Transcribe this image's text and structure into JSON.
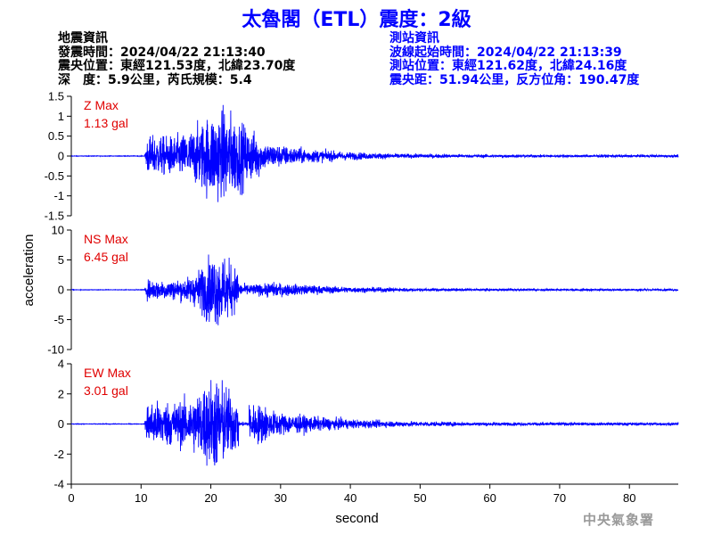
{
  "header": {
    "title": "太魯閣（ETL）震度：2級"
  },
  "quake_info": {
    "heading": "地震資訊",
    "origin_time": "發震時間：2024/04/22 21:13:40",
    "epicenter": "震央位置：東經121.53度，北緯23.70度",
    "depth_magnitude": "深　度：5.9公里，芮氏規模：5.4"
  },
  "station_info": {
    "heading": "測站資訊",
    "wave_start": "波線起始時間：2024/04/22 21:13:39",
    "location": "測站位置：東經121.62度，北緯24.16度",
    "distance": "震央距：51.94公里，反方位角：190.47度"
  },
  "watermark": "中央氣象署",
  "chart_data": {
    "type": "line",
    "xlabel": "second",
    "ylabel": "acceleration",
    "xlim": [
      0,
      87
    ],
    "xticks": [
      "0",
      "10",
      "20",
      "30",
      "40",
      "50",
      "60",
      "70",
      "80"
    ],
    "line_color": "#0000ff",
    "label_color": "#e00000",
    "grid": false,
    "onset_s": 10.5,
    "panels": [
      {
        "component": "Z",
        "max_label": "Z Max",
        "max_value": "1.13 gal",
        "peak": 1.13,
        "ylim": [
          -1.5,
          1.5
        ],
        "yticks": [
          "1.5",
          "1",
          "0.5",
          "0",
          "-0.5",
          "-1",
          "-1.5"
        ]
      },
      {
        "component": "NS",
        "max_label": "NS Max",
        "max_value": "6.45 gal",
        "peak": 6.45,
        "ylim": [
          -10,
          10
        ],
        "yticks": [
          "10",
          "5",
          "0",
          "-5",
          "-10"
        ]
      },
      {
        "component": "EW",
        "max_label": "EW Max",
        "max_value": "3.01 gal",
        "peak": 3.01,
        "ylim": [
          -4,
          4
        ],
        "yticks": [
          "4",
          "2",
          "0",
          "-2",
          "-4"
        ]
      }
    ]
  }
}
